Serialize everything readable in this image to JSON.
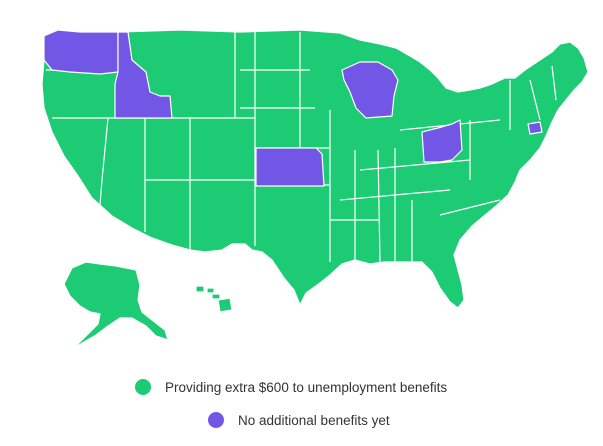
{
  "colors": {
    "providing": "#1ccb74",
    "none": "#7257e6"
  },
  "states_without_benefits": [
    "Washington",
    "Idaho",
    "Wisconsin",
    "Kansas",
    "Ohio",
    "Connecticut"
  ],
  "legend": {
    "items": [
      {
        "label": "Providing extra $600 to unemployment benefits",
        "status": "providing"
      },
      {
        "label": "No additional benefits yet",
        "status": "none"
      }
    ]
  }
}
